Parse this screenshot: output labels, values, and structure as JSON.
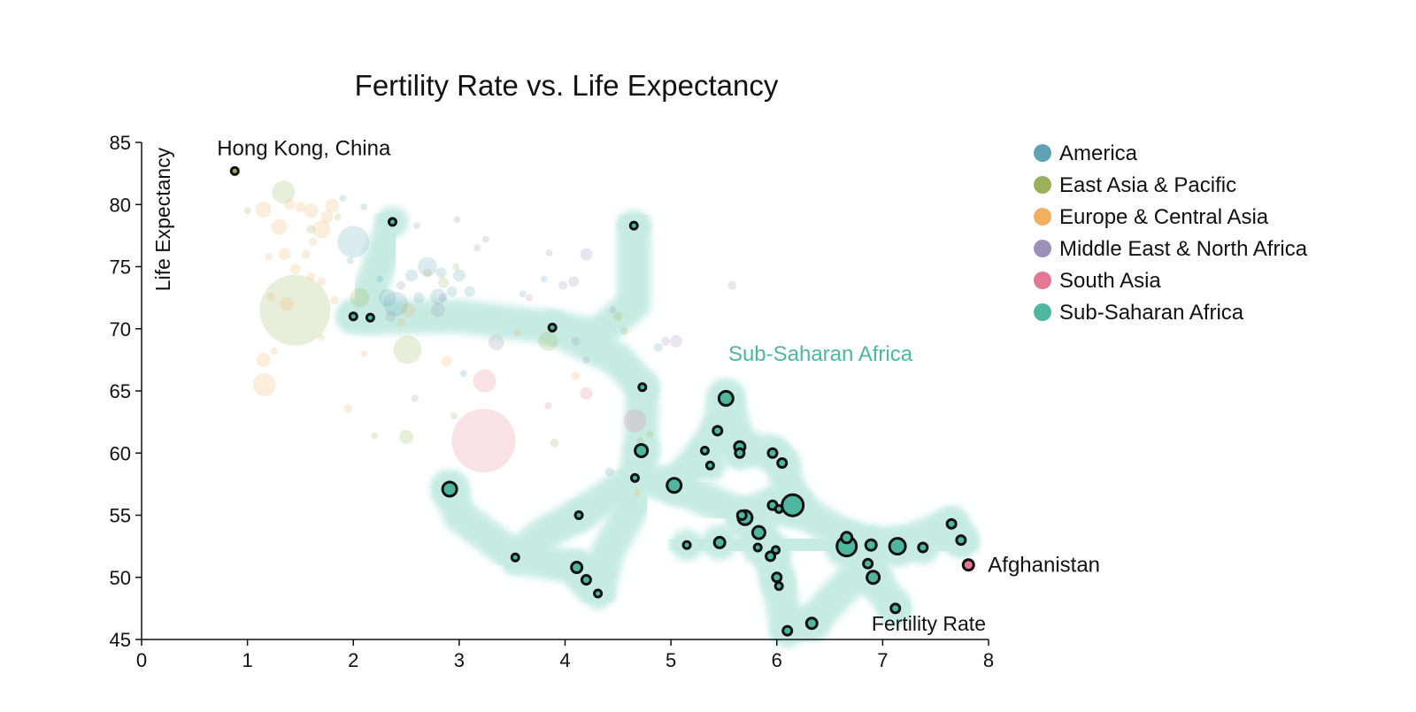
{
  "colors": {
    "America": "#5fa2b4",
    "East Asia & Pacific": "#9bb05a",
    "Europe & Central Asia": "#f0b05e",
    "Middle East & North Africa": "#9c8fb8",
    "South Asia": "#e27894",
    "Sub-Saharan Africa": "#4fb6a0",
    "hull": "#c6ece2"
  },
  "chart_data": {
    "type": "scatter",
    "title": "Fertility Rate vs. Life Expectancy",
    "xlabel": "Fertility Rate",
    "ylabel": "Life Expectancy",
    "xlim": [
      0,
      8
    ],
    "ylim": [
      45,
      85
    ],
    "xticks": [
      0,
      1,
      2,
      3,
      4,
      5,
      6,
      7,
      8
    ],
    "yticks": [
      45,
      50,
      55,
      60,
      65,
      70,
      75,
      80,
      85
    ],
    "legend": [
      "America",
      "East Asia & Pacific",
      "Europe & Central Asia",
      "Middle East & North Africa",
      "South Asia",
      "Sub-Saharan Africa"
    ],
    "legend_position": "top-right",
    "highlighted_region": "Sub-Saharan Africa",
    "hull_label": "Sub-Saharan Africa",
    "annotations": [
      {
        "text": "Hong Kong, China",
        "x": 0.88,
        "y": 82.7
      },
      {
        "text": "Afghanistan",
        "x": 7.81,
        "y": 51.0
      }
    ],
    "series": [
      {
        "name": "Sub-Saharan Africa",
        "points": [
          [
            2.0,
            71.0,
            4
          ],
          [
            2.16,
            70.9,
            4
          ],
          [
            2.37,
            78.6,
            4
          ],
          [
            3.88,
            70.1,
            4
          ],
          [
            4.65,
            78.3,
            4
          ],
          [
            4.73,
            65.3,
            4
          ],
          [
            5.52,
            64.4,
            8
          ],
          [
            5.44,
            61.8,
            5
          ],
          [
            4.72,
            60.2,
            7
          ],
          [
            5.32,
            60.2,
            4
          ],
          [
            5.37,
            59.0,
            4
          ],
          [
            5.65,
            60.5,
            6
          ],
          [
            5.65,
            60.0,
            5
          ],
          [
            5.96,
            60.0,
            5
          ],
          [
            6.05,
            59.2,
            5
          ],
          [
            4.66,
            58.0,
            4
          ],
          [
            5.03,
            57.4,
            8
          ],
          [
            6.15,
            55.8,
            12
          ],
          [
            5.96,
            55.8,
            5
          ],
          [
            6.02,
            55.5,
            4
          ],
          [
            4.13,
            55.0,
            4
          ],
          [
            5.7,
            54.8,
            8
          ],
          [
            5.67,
            55.0,
            5
          ],
          [
            5.83,
            53.6,
            7
          ],
          [
            2.91,
            57.1,
            8
          ],
          [
            6.66,
            53.2,
            6
          ],
          [
            6.66,
            52.5,
            11
          ],
          [
            6.89,
            52.6,
            6
          ],
          [
            7.14,
            52.5,
            9
          ],
          [
            7.38,
            52.4,
            5
          ],
          [
            7.65,
            54.3,
            5
          ],
          [
            7.74,
            53.0,
            5
          ],
          [
            5.15,
            52.6,
            4
          ],
          [
            5.46,
            52.8,
            6
          ],
          [
            5.82,
            52.4,
            4
          ],
          [
            5.99,
            52.2,
            4
          ],
          [
            5.94,
            51.7,
            5
          ],
          [
            6.86,
            51.1,
            5
          ],
          [
            6.91,
            50.0,
            7
          ],
          [
            3.53,
            51.6,
            4
          ],
          [
            4.11,
            50.8,
            6
          ],
          [
            4.2,
            49.8,
            5
          ],
          [
            4.31,
            48.7,
            4
          ],
          [
            6.0,
            50.0,
            5
          ],
          [
            6.02,
            49.3,
            4
          ],
          [
            7.12,
            47.5,
            5
          ],
          [
            6.33,
            46.3,
            6
          ],
          [
            6.1,
            45.7,
            5
          ]
        ]
      },
      {
        "name": "East Asia & Pacific",
        "points": [
          [
            0.88,
            82.7,
            4
          ],
          [
            1.34,
            81.0,
            13
          ],
          [
            1.0,
            79.5,
            4
          ],
          [
            1.85,
            79.0,
            4
          ],
          [
            2.06,
            72.5,
            11
          ],
          [
            1.45,
            71.5,
            40
          ],
          [
            2.51,
            68.3,
            16
          ],
          [
            2.7,
            74.5,
            5
          ],
          [
            1.6,
            78.0,
            5
          ],
          [
            3.84,
            69.0,
            11
          ],
          [
            2.5,
            61.3,
            8
          ],
          [
            2.95,
            63.0,
            4
          ],
          [
            4.5,
            71.0,
            5
          ],
          [
            4.71,
            61.0,
            4
          ],
          [
            2.2,
            61.4,
            4
          ],
          [
            3.9,
            60.8,
            5
          ],
          [
            2.97,
            75.0,
            4
          ],
          [
            2.85,
            73.7,
            6
          ],
          [
            4.56,
            69.8,
            4
          ],
          [
            4.8,
            61.5,
            4
          ]
        ]
      },
      {
        "name": "Europe & Central Asia",
        "points": [
          [
            1.16,
            65.5,
            13
          ],
          [
            1.15,
            67.5,
            8
          ],
          [
            1.25,
            68.2,
            4
          ],
          [
            1.15,
            79.6,
            9
          ],
          [
            1.3,
            78.2,
            9
          ],
          [
            1.4,
            80.0,
            6
          ],
          [
            1.5,
            79.8,
            6
          ],
          [
            1.6,
            79.5,
            8
          ],
          [
            1.7,
            78.0,
            10
          ],
          [
            1.75,
            79.0,
            7
          ],
          [
            1.8,
            79.9,
            8
          ],
          [
            1.62,
            77.0,
            5
          ],
          [
            1.55,
            76.0,
            5
          ],
          [
            1.35,
            76.0,
            7
          ],
          [
            1.2,
            75.8,
            4
          ],
          [
            1.45,
            74.8,
            6
          ],
          [
            1.6,
            74.2,
            5
          ],
          [
            1.7,
            73.8,
            5
          ],
          [
            1.82,
            72.3,
            5
          ],
          [
            1.37,
            72.0,
            8
          ],
          [
            1.22,
            72.6,
            5
          ],
          [
            1.7,
            69.3,
            4
          ],
          [
            1.95,
            63.6,
            5
          ],
          [
            2.1,
            68.0,
            4
          ],
          [
            2.45,
            70.5,
            5
          ],
          [
            2.52,
            71.5,
            8
          ],
          [
            2.88,
            67.4,
            6
          ],
          [
            3.55,
            69.7,
            4
          ],
          [
            4.68,
            56.8,
            4
          ],
          [
            4.1,
            66.2,
            5
          ]
        ]
      },
      {
        "name": "America",
        "points": [
          [
            2.0,
            77.0,
            18
          ],
          [
            1.9,
            80.5,
            4
          ],
          [
            2.1,
            79.8,
            4
          ],
          [
            2.32,
            72.5,
            10
          ],
          [
            2.4,
            72.0,
            14
          ],
          [
            2.55,
            74.3,
            7
          ],
          [
            2.7,
            75.0,
            11
          ],
          [
            2.83,
            74.5,
            6
          ],
          [
            2.93,
            73.0,
            6
          ],
          [
            2.62,
            72.5,
            6
          ],
          [
            2.8,
            72.6,
            9
          ],
          [
            3.0,
            74.3,
            7
          ],
          [
            3.1,
            73.0,
            6
          ],
          [
            2.25,
            74.0,
            4
          ],
          [
            1.97,
            75.5,
            4
          ],
          [
            3.8,
            74.0,
            4
          ],
          [
            3.6,
            72.8,
            4
          ],
          [
            2.58,
            64.4,
            4
          ],
          [
            3.04,
            66.4,
            4
          ],
          [
            4.88,
            68.5,
            5
          ],
          [
            4.42,
            58.5,
            5
          ]
        ]
      },
      {
        "name": "Middle East & North Africa",
        "points": [
          [
            2.35,
            71.0,
            6
          ],
          [
            2.45,
            73.5,
            5
          ],
          [
            2.85,
            72.5,
            5
          ],
          [
            3.35,
            68.9,
            9
          ],
          [
            3.25,
            77.2,
            4
          ],
          [
            3.98,
            73.5,
            5
          ],
          [
            4.08,
            73.8,
            6
          ],
          [
            4.2,
            76.0,
            7
          ],
          [
            4.1,
            69.0,
            5
          ],
          [
            4.2,
            67.5,
            4
          ],
          [
            4.45,
            71.5,
            4
          ],
          [
            4.95,
            69.0,
            5
          ],
          [
            5.05,
            69.0,
            7
          ],
          [
            5.58,
            73.5,
            5
          ],
          [
            3.17,
            76.5,
            4
          ],
          [
            2.8,
            71.5,
            8
          ],
          [
            3.85,
            76.1,
            4
          ],
          [
            2.98,
            78.8,
            4
          ],
          [
            2.6,
            78.3,
            4
          ]
        ]
      },
      {
        "name": "South Asia",
        "points": [
          [
            3.23,
            61.0,
            36
          ],
          [
            3.24,
            65.8,
            13
          ],
          [
            4.66,
            62.6,
            13
          ],
          [
            4.2,
            64.8,
            7
          ],
          [
            3.66,
            72.5,
            4
          ],
          [
            3.84,
            63.8,
            4
          ],
          [
            7.81,
            51.0,
            6
          ]
        ]
      }
    ]
  }
}
